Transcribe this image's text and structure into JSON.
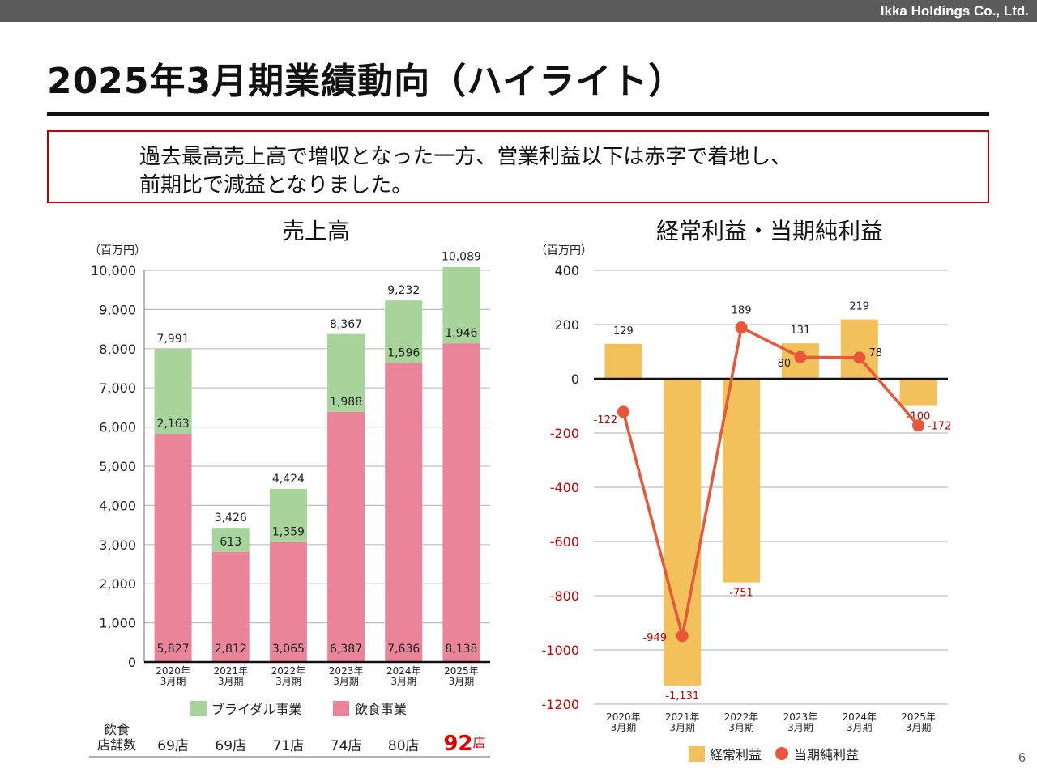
{
  "header": {
    "company": "Ikka Holdings Co., Ltd."
  },
  "page_title": "2025年3月期業績動向（ハイライト）",
  "summary": {
    "line1": "過去最高売上高で増収となった一方、営業利益以下は赤字で着地し、",
    "line2": "前期比で減益となりました。"
  },
  "chart_data": [
    {
      "type": "bar",
      "stacked": true,
      "title": "売上高",
      "unit_label": "（百万円）",
      "categories": [
        "2020年\n3月期",
        "2021年\n3月期",
        "2022年\n3月期",
        "2023年\n3月期",
        "2024年\n3月期",
        "2025年\n3月期"
      ],
      "series": [
        {
          "name": "飲食事業",
          "color": "#ea8599",
          "values": [
            5827,
            2812,
            3065,
            6387,
            7636,
            8138
          ]
        },
        {
          "name": "ブライダル事業",
          "color": "#a6d49a",
          "values": [
            2163,
            613,
            1359,
            1988,
            1596,
            1946
          ]
        }
      ],
      "totals": [
        7991,
        3426,
        4424,
        8367,
        9232,
        10089
      ],
      "ylim": [
        0,
        10000
      ],
      "yticks": [
        0,
        1000,
        2000,
        3000,
        4000,
        5000,
        6000,
        7000,
        8000,
        9000,
        10000
      ],
      "grid": true,
      "legend_position": "bottom",
      "store_counts": {
        "label_line1": "飲食",
        "label_line2": "店舗数",
        "values": [
          "69店",
          "69店",
          "71店",
          "74店",
          "80店",
          "92店"
        ]
      }
    },
    {
      "type": "bar",
      "title": "経常利益・当期純利益",
      "unit_label": "（百万円）",
      "categories": [
        "2020年\n3月期",
        "2021年\n3月期",
        "2022年\n3月期",
        "2023年\n3月期",
        "2024年\n3月期",
        "2025年\n3月期"
      ],
      "series": [
        {
          "name": "経常利益",
          "type": "bar",
          "color": "#f2c15c",
          "values": [
            129,
            -1131,
            -751,
            131,
            219,
            -100
          ],
          "labels": [
            "129",
            "-1,131",
            "-751",
            "131",
            "219",
            "-100"
          ]
        },
        {
          "name": "当期純利益",
          "type": "line",
          "color": "#e8573a",
          "values": [
            -122,
            -949,
            189,
            80,
            78,
            -172
          ],
          "labels": [
            "-122",
            "-949",
            "189",
            "80",
            "78",
            "-172"
          ]
        }
      ],
      "ylim": [
        -1200,
        400
      ],
      "yticks": [
        400,
        200,
        0,
        -200,
        -400,
        -600,
        -800,
        -1000,
        -1200
      ],
      "ytick_labels": [
        "400",
        "200",
        "0",
        "-200",
        "-400",
        "-600",
        "-800",
        "-1000",
        "-1200"
      ],
      "grid": true,
      "legend_position": "bottom"
    }
  ],
  "page_number": "6",
  "colors": {
    "negative_text": "#c00000",
    "store_highlight": "#e00000"
  }
}
